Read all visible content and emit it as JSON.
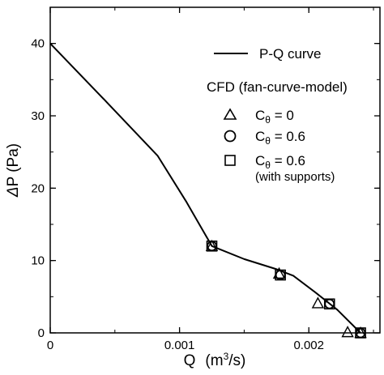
{
  "chart_data": {
    "type": "line",
    "xlabel_main": "Q",
    "xlabel_unit_pre": "(m",
    "xlabel_unit_sup": "3",
    "xlabel_unit_post": "/s)",
    "ylabel_delta": "Δ",
    "ylabel_rest": "P  (Pa)",
    "xlim": [
      0,
      0.00255
    ],
    "ylim": [
      0,
      45
    ],
    "x_ticks": [
      {
        "value": 0,
        "label": "0"
      },
      {
        "value": 0.001,
        "label": "0.001"
      },
      {
        "value": 0.002,
        "label": "0.002"
      }
    ],
    "y_ticks": [
      {
        "value": 0,
        "label": "0"
      },
      {
        "value": 10,
        "label": "10"
      },
      {
        "value": 20,
        "label": "20"
      },
      {
        "value": 30,
        "label": "30"
      },
      {
        "value": 40,
        "label": "40"
      }
    ],
    "x_minor_step": 0.0005,
    "y_minor_step": 5,
    "series": [
      {
        "name": "P-Q curve",
        "kind": "line",
        "x": [
          0,
          0.00042,
          0.00083,
          0.00105,
          0.00125,
          0.0015,
          0.00175,
          0.00188,
          0.00205,
          0.00222,
          0.0024
        ],
        "y": [
          40,
          32.2,
          24.5,
          18.2,
          12.0,
          10.2,
          8.8,
          7.9,
          5.6,
          3.2,
          0
        ]
      },
      {
        "name": "C_θ = 0",
        "kind": "scatter",
        "marker": "triangle",
        "x": [
          0.00125,
          0.00177,
          0.00207,
          0.0023,
          0.0024
        ],
        "y": [
          12,
          8.2,
          4.1,
          0.1,
          0
        ]
      },
      {
        "name": "C_θ = 0.6",
        "kind": "scatter",
        "marker": "circle",
        "x": [
          0.00125,
          0.00178,
          0.00216,
          0.0024
        ],
        "y": [
          12,
          8.0,
          4.0,
          0
        ]
      },
      {
        "name": "C_θ = 0.6 (with supports)",
        "kind": "scatter",
        "marker": "square",
        "x": [
          0.00125,
          0.00178,
          0.00216,
          0.0024
        ],
        "y": [
          12,
          8.0,
          4.0,
          0
        ]
      }
    ]
  },
  "legend": {
    "line_label": "P-Q curve",
    "cfd_title": "CFD (fan-curve-model)",
    "entries": [
      {
        "marker": "triangle",
        "c": "C",
        "sub": "θ",
        "rest": " = 0",
        "extra": ""
      },
      {
        "marker": "circle",
        "c": "C",
        "sub": "θ",
        "rest": " = 0.6",
        "extra": ""
      },
      {
        "marker": "square",
        "c": "C",
        "sub": "θ",
        "rest": " = 0.6",
        "extra": "(with supports)"
      }
    ]
  }
}
